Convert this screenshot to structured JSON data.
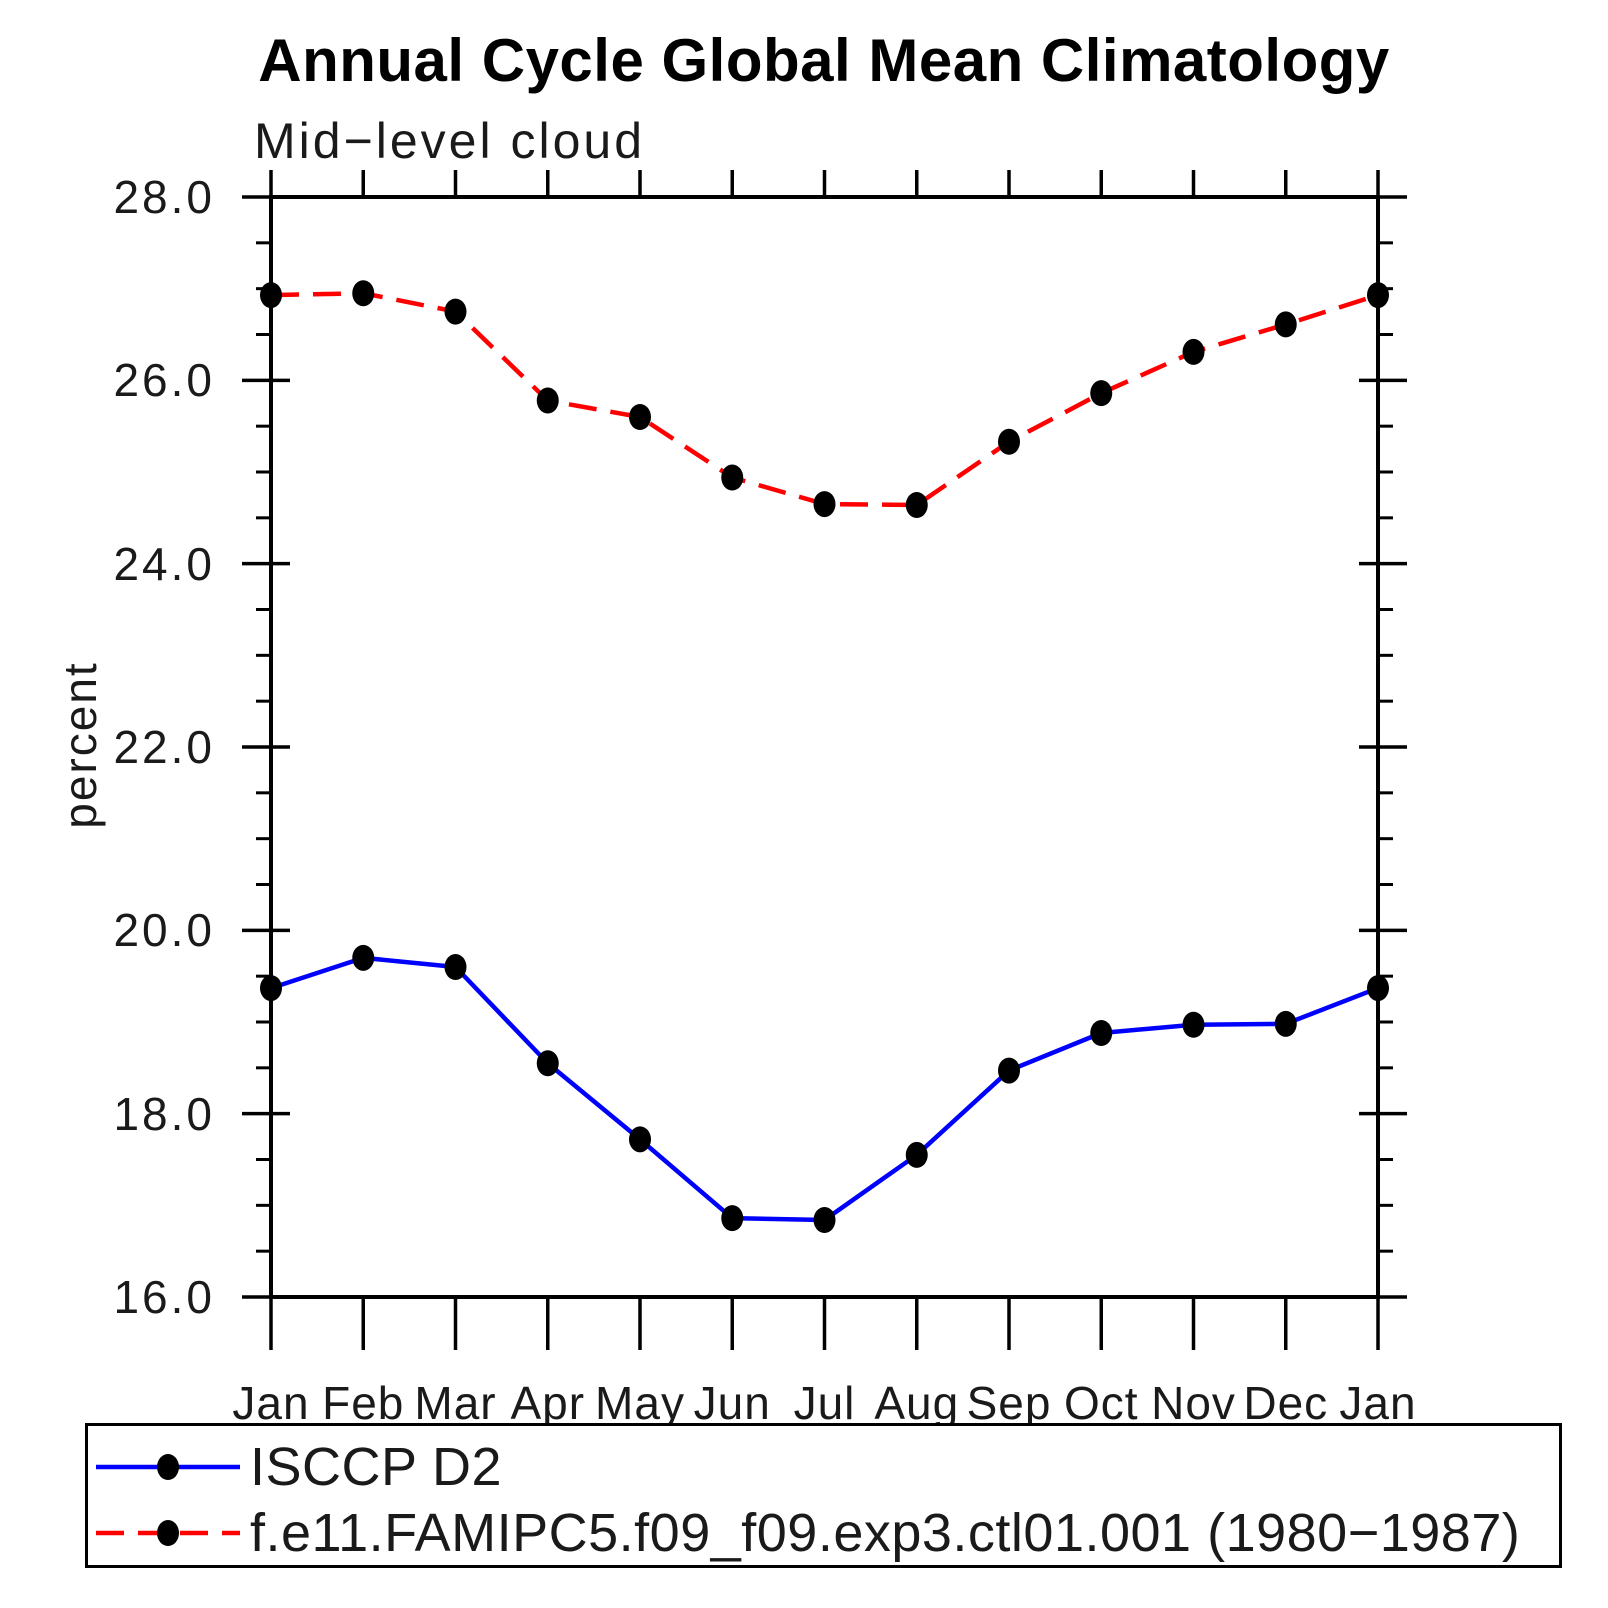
{
  "chart_data": {
    "type": "line",
    "title": "Annual Cycle Global Mean Climatology",
    "subtitle": "Mid−level cloud",
    "ylabel": "percent",
    "xlabel": "",
    "ylim": [
      16.0,
      28.0
    ],
    "y_major_tick_step": 2.0,
    "y_minor_tick_step": 0.5,
    "y_major_tick_labels": [
      "16.0",
      "18.0",
      "20.0",
      "22.0",
      "24.0",
      "26.0",
      "28.0"
    ],
    "x_tick_labels": [
      "Jan",
      "Feb",
      "Mar",
      "Apr",
      "May",
      "Jun",
      "Jul",
      "Aug",
      "Sep",
      "Oct",
      "Nov",
      "Dec",
      "Jan"
    ],
    "grid": false,
    "frame_color": "#000000",
    "marker_shape": "filled-circle",
    "marker_color": "#000000",
    "legend_position": "bottom-left-box",
    "series": [
      {
        "name": "ISCCP D2",
        "color": "#0000ff",
        "line_style": "solid",
        "values": [
          19.37,
          19.7,
          19.6,
          18.55,
          17.72,
          16.86,
          16.84,
          17.55,
          18.47,
          18.88,
          18.97,
          18.98,
          19.37
        ]
      },
      {
        "name": "f.e11.FAMIPC5.f09_f09.exp3.ctl01.001 (1980−1987)",
        "color": "#ff0000",
        "line_style": "dashed",
        "values": [
          26.93,
          26.95,
          26.75,
          25.78,
          25.6,
          24.94,
          24.65,
          24.64,
          25.33,
          25.86,
          26.31,
          26.61,
          26.93
        ]
      }
    ]
  }
}
